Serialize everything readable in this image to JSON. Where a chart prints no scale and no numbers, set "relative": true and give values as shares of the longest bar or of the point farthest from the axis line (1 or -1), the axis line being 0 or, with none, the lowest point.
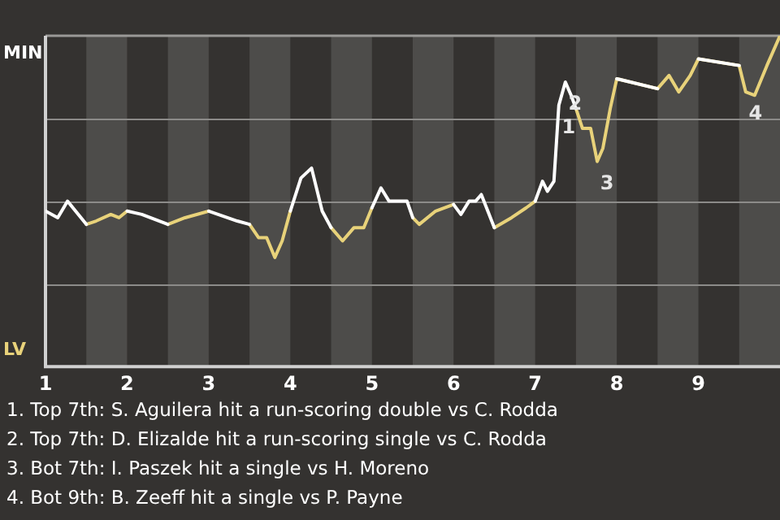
{
  "chart_data": {
    "type": "line",
    "relative": true,
    "grid": "y",
    "legend": false,
    "marker": "none",
    "line_style": "solid",
    "x": [
      1.0,
      1.15,
      1.27,
      1.5,
      1.62,
      1.8,
      1.9,
      2.0,
      2.18,
      2.5,
      2.71,
      3.0,
      3.35,
      3.5,
      3.61,
      3.71,
      3.81,
      3.9,
      4.0,
      4.13,
      4.26,
      4.39,
      4.5,
      4.64,
      4.78,
      4.9,
      5.0,
      5.11,
      5.21,
      5.43,
      5.5,
      5.58,
      5.78,
      6.0,
      6.09,
      6.19,
      6.27,
      6.34,
      6.5,
      6.71,
      6.89,
      7.0,
      7.09,
      7.15,
      7.23,
      7.29,
      7.37,
      7.44,
      7.5,
      7.58,
      7.68,
      7.76,
      7.83,
      7.92,
      8.0,
      8.5,
      8.64,
      8.76,
      8.9,
      9.0,
      9.5,
      9.58,
      9.69,
      9.84,
      10.0
    ],
    "xlim": [
      1,
      10
    ],
    "xticks": [
      1,
      2,
      3,
      4,
      5,
      6,
      7,
      8,
      9
    ],
    "series": [
      {
        "name": "MIN",
        "color": "#ffffff",
        "values": [
          0.47,
          0.45,
          0.5,
          0.43,
          null,
          null,
          null,
          0.47,
          0.46,
          0.43,
          null,
          0.47,
          0.44,
          0.43,
          null,
          null,
          null,
          null,
          0.47,
          0.57,
          0.6,
          0.47,
          0.42,
          null,
          null,
          null,
          0.48,
          0.54,
          0.5,
          0.5,
          0.45,
          null,
          null,
          0.49,
          0.46,
          0.5,
          0.5,
          0.52,
          0.42,
          null,
          null,
          0.5,
          0.56,
          0.53,
          0.56,
          0.79,
          0.86,
          0.82,
          0.78,
          null,
          null,
          null,
          null,
          null,
          0.87,
          0.84,
          null,
          null,
          null,
          0.93,
          0.91,
          null,
          null,
          null,
          null
        ]
      },
      {
        "name": "LV",
        "color": "#e8d27a",
        "values": [
          null,
          null,
          null,
          0.43,
          0.44,
          0.46,
          0.45,
          0.47,
          null,
          0.43,
          0.45,
          0.47,
          null,
          0.43,
          0.39,
          0.39,
          0.33,
          0.38,
          0.47,
          null,
          null,
          null,
          0.42,
          0.38,
          0.42,
          0.42,
          0.48,
          null,
          null,
          null,
          0.45,
          0.43,
          0.47,
          0.49,
          null,
          null,
          null,
          null,
          0.42,
          0.45,
          0.48,
          0.5,
          null,
          null,
          null,
          null,
          null,
          null,
          0.78,
          0.72,
          0.72,
          0.62,
          0.66,
          0.78,
          0.87,
          0.84,
          0.88,
          0.83,
          0.88,
          0.93,
          0.91,
          0.83,
          0.82,
          0.91,
          1.0
        ]
      }
    ],
    "bands": [
      {
        "axis": "x",
        "from": 1.5,
        "to": 2,
        "color": "#4d4c4a"
      },
      {
        "axis": "x",
        "from": 2.5,
        "to": 3,
        "color": "#4d4c4a"
      },
      {
        "axis": "x",
        "from": 3.5,
        "to": 4,
        "color": "#4d4c4a"
      },
      {
        "axis": "x",
        "from": 4.5,
        "to": 5,
        "color": "#4d4c4a"
      },
      {
        "axis": "x",
        "from": 5.5,
        "to": 6,
        "color": "#4d4c4a"
      },
      {
        "axis": "x",
        "from": 6.5,
        "to": 7,
        "color": "#4d4c4a"
      },
      {
        "axis": "x",
        "from": 7.5,
        "to": 8,
        "color": "#4d4c4a"
      },
      {
        "axis": "x",
        "from": 8.5,
        "to": 9,
        "color": "#4d4c4a"
      },
      {
        "axis": "x",
        "from": 9.5,
        "to": 10,
        "color": "#4d4c4a"
      }
    ],
    "annotations": [
      {
        "text": "1",
        "x": 7.29,
        "y": 0.79
      },
      {
        "text": "2",
        "x": 7.37,
        "y": 0.86
      },
      {
        "text": "3",
        "x": 7.76,
        "y": 0.62
      },
      {
        "text": "4",
        "x": 9.58,
        "y": 0.83
      },
      "1. Top 7th: S. Aguilera hit a run-scoring double vs C. Rodda",
      "2. Top 7th: D. Elizalde hit a run-scoring single vs C. Rodda",
      "3. Bot 7th: I. Paszek hit a single vs H. Moreno",
      "4. Bot 9th: B. Zeeff hit a single vs P. Payne"
    ]
  }
}
